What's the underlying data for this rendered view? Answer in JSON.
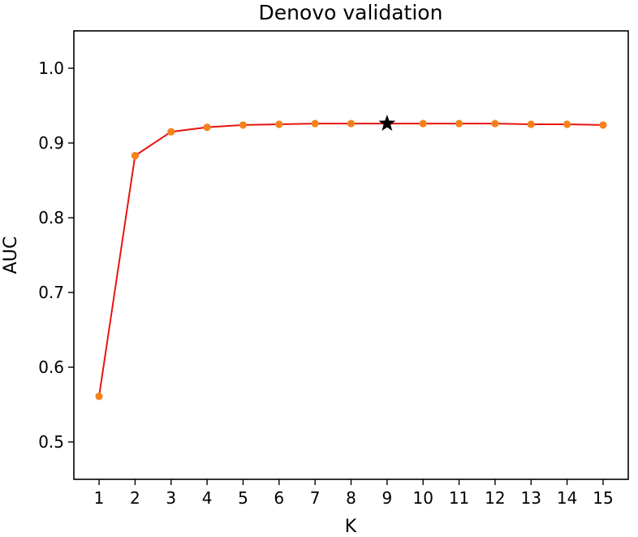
{
  "chart_data": {
    "type": "line",
    "title": "Denovo validation",
    "xlabel": "K",
    "ylabel": "AUC",
    "x": [
      1,
      2,
      3,
      4,
      5,
      6,
      7,
      8,
      9,
      10,
      11,
      12,
      13,
      14,
      15
    ],
    "series": [
      {
        "values": [
          0.561,
          0.883,
          0.915,
          0.921,
          0.924,
          0.925,
          0.926,
          0.926,
          0.926,
          0.926,
          0.926,
          0.926,
          0.925,
          0.925,
          0.924
        ]
      }
    ],
    "best_point": {
      "x": 9,
      "y": 0.926,
      "marker": "star"
    },
    "xlim": [
      0.3,
      15.7
    ],
    "ylim": [
      0.45,
      1.05
    ],
    "xticks": [
      "1",
      "2",
      "3",
      "4",
      "5",
      "6",
      "7",
      "8",
      "9",
      "10",
      "11",
      "12",
      "13",
      "14",
      "15"
    ],
    "yticks": [
      "0.5",
      "0.6",
      "0.7",
      "0.8",
      "0.9",
      "1.0"
    ],
    "grid": false,
    "line_color": "#e8150f",
    "marker_color": "#f5821e",
    "best_marker_color": "#000000"
  }
}
